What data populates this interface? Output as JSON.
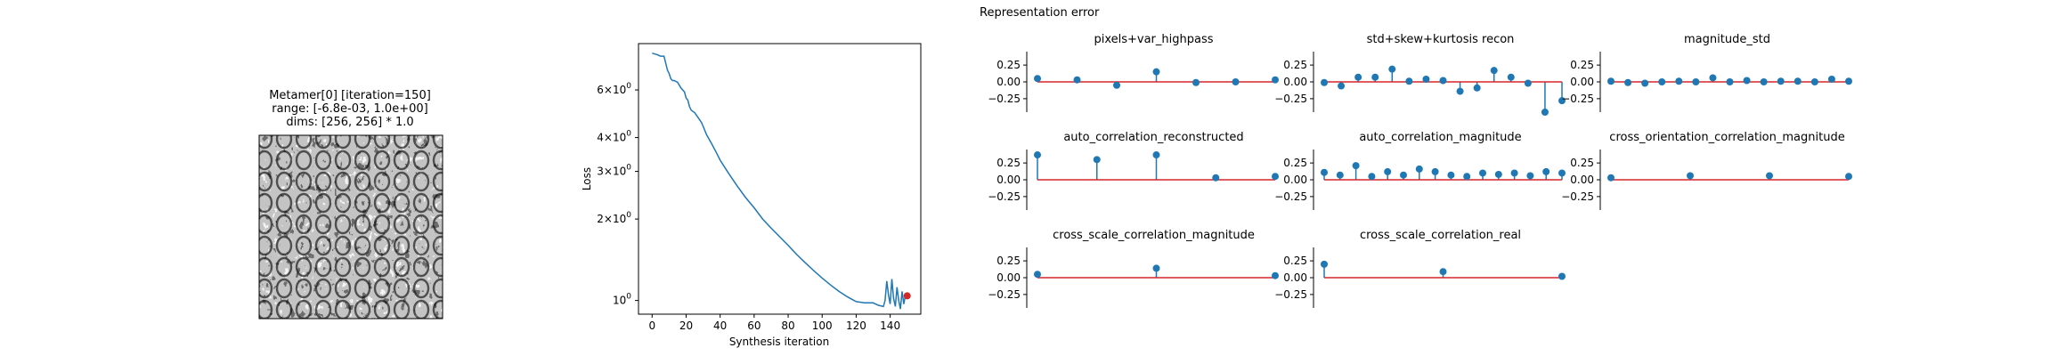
{
  "colors": {
    "stem": "#1f77b4",
    "baseline": "#d62728",
    "loss_line": "#1f77b4",
    "loss_marker": "#d62728",
    "axis": "#000000"
  },
  "metamer": {
    "title_lines": [
      "Metamer[0] [iteration=150]",
      "range: [-6.8e-03, 1.0e+00]",
      "dims: [256, 256] * 1.0"
    ],
    "image": "grayscale texture (honeycomb-like pattern)"
  },
  "chart_data": [
    {
      "type": "line",
      "title": "",
      "xlabel": "Synthesis iteration",
      "ylabel": "Loss",
      "yscale": "log",
      "xlim": [
        -8,
        158
      ],
      "ylim": [
        0.89,
        8.9
      ],
      "xticks": [
        0,
        20,
        40,
        60,
        80,
        100,
        120,
        140
      ],
      "yticks": [
        {
          "value": 1,
          "label": "10^0"
        },
        {
          "value": 2,
          "label": "2×10^0"
        },
        {
          "value": 3,
          "label": "3×10^0"
        },
        {
          "value": 4,
          "label": "4×10^0"
        },
        {
          "value": 6,
          "label": "6×10^0"
        }
      ],
      "x": [
        0,
        3,
        5,
        7,
        9,
        10,
        11,
        12,
        13,
        15,
        17,
        19,
        20,
        21,
        22,
        23,
        25,
        27,
        29,
        30,
        32,
        35,
        38,
        40,
        45,
        50,
        55,
        60,
        65,
        70,
        75,
        80,
        85,
        90,
        95,
        100,
        105,
        110,
        115,
        120,
        125,
        130,
        133,
        136,
        137,
        138,
        139,
        140,
        141,
        142,
        143,
        144,
        145,
        146,
        147,
        148,
        149,
        150
      ],
      "y": [
        8.2,
        8.1,
        8.0,
        8.0,
        7.1,
        6.9,
        6.6,
        6.5,
        6.5,
        6.4,
        6.1,
        5.9,
        5.6,
        5.5,
        5.2,
        5.05,
        4.95,
        4.75,
        4.55,
        4.4,
        4.1,
        3.8,
        3.5,
        3.3,
        2.95,
        2.65,
        2.4,
        2.2,
        2.0,
        1.85,
        1.72,
        1.6,
        1.48,
        1.38,
        1.29,
        1.21,
        1.14,
        1.08,
        1.03,
        0.99,
        0.98,
        0.98,
        0.96,
        0.95,
        1.0,
        1.18,
        1.05,
        0.97,
        1.2,
        1.02,
        0.95,
        1.12,
        1.0,
        0.93,
        1.08,
        0.97,
        1.05,
        1.04
      ],
      "highlight_point": {
        "x": 150,
        "y": 1.04
      }
    },
    {
      "type": "stem",
      "title": "pixels+var_highpass",
      "ylim": [
        -0.45,
        0.45
      ],
      "yticks": [
        0.25,
        0.0,
        -0.25
      ],
      "values": [
        0.05,
        0.03,
        -0.05,
        0.15,
        -0.01,
        0.0,
        0.03
      ],
      "positions": [
        0,
        1,
        2,
        3,
        4,
        5,
        6
      ]
    },
    {
      "type": "stem",
      "title": "std+skew+kurtosis recon",
      "ylim": [
        -0.45,
        0.45
      ],
      "yticks": [
        0.25,
        0.0,
        -0.25
      ],
      "values": [
        -0.01,
        -0.06,
        0.07,
        0.07,
        0.19,
        0.01,
        0.04,
        0.02,
        -0.14,
        -0.09,
        0.17,
        0.07,
        -0.02,
        -0.45,
        -0.28
      ],
      "positions": [
        0,
        1,
        2,
        3,
        4,
        5,
        6,
        7,
        8,
        9,
        10,
        11,
        12,
        13,
        14
      ]
    },
    {
      "type": "stem",
      "title": "magnitude_std",
      "ylim": [
        -0.45,
        0.45
      ],
      "yticks": [
        0.25,
        0.0,
        -0.25
      ],
      "values": [
        0.01,
        -0.01,
        -0.02,
        0.0,
        0.01,
        0.0,
        0.06,
        0.0,
        0.02,
        0.0,
        0.01,
        0.01,
        0.0,
        0.04,
        0.01
      ],
      "positions": [
        0,
        1,
        2,
        3,
        4,
        5,
        6,
        7,
        8,
        9,
        10,
        11,
        12,
        13,
        14
      ]
    },
    {
      "type": "stem",
      "title": "auto_correlation_reconstructed",
      "ylim": [
        -0.45,
        0.45
      ],
      "yticks": [
        0.25,
        0.0,
        -0.25
      ],
      "values": [
        0.37,
        0.3,
        0.37,
        0.03,
        0.05
      ],
      "positions": [
        0,
        1,
        2,
        3,
        4
      ]
    },
    {
      "type": "stem",
      "title": "auto_correlation_magnitude",
      "ylim": [
        -0.45,
        0.45
      ],
      "yticks": [
        0.25,
        0.0,
        -0.25
      ],
      "values": [
        0.11,
        0.07,
        0.21,
        0.05,
        0.12,
        0.07,
        0.16,
        0.12,
        0.07,
        0.05,
        0.1,
        0.08,
        0.1,
        0.06,
        0.12,
        0.1
      ],
      "positions": [
        0,
        1,
        2,
        3,
        4,
        5,
        6,
        7,
        8,
        9,
        10,
        11,
        12,
        13,
        14,
        15
      ]
    },
    {
      "type": "stem",
      "title": "cross_orientation_correlation_magnitude",
      "ylim": [
        -0.45,
        0.45
      ],
      "yticks": [
        0.25,
        0.0,
        -0.25
      ],
      "values": [
        0.03,
        0.06,
        0.06,
        0.05
      ],
      "positions": [
        0,
        1,
        2,
        3
      ]
    },
    {
      "type": "stem",
      "title": "cross_scale_correlation_magnitude",
      "ylim": [
        -0.45,
        0.45
      ],
      "yticks": [
        0.25,
        0.0,
        -0.25
      ],
      "values": [
        0.05,
        0.14,
        0.03
      ],
      "positions": [
        0,
        1,
        2
      ]
    },
    {
      "type": "stem",
      "title": "cross_scale_correlation_real",
      "ylim": [
        -0.45,
        0.45
      ],
      "yticks": [
        0.25,
        0.0,
        -0.25
      ],
      "values": [
        0.2,
        0.09,
        0.02
      ],
      "positions": [
        0,
        1,
        2
      ]
    }
  ],
  "representation_error": {
    "title": "Representation error"
  }
}
